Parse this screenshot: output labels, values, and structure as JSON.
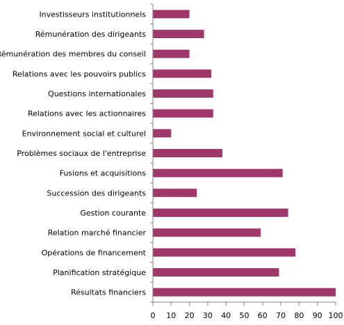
{
  "chart_data": {
    "type": "bar",
    "orientation": "horizontal",
    "categories": [
      "Investisseurs institutionnels",
      "Rémunération des dirigeants",
      "Rémunération des membres du conseil",
      "Relations avec les pouvoirs publics",
      "Questions internationales",
      "Relations avec les actionnaires",
      "Environnement social et culturel",
      "Problèmes sociaux de l'entreprise",
      "Fusions et acquisitions",
      "Succession des dirigeants",
      "Gestion courante",
      "Relation marché financier",
      "Opérations de financement",
      "Planification stratégique",
      "Résultats financiers"
    ],
    "values": [
      20,
      28,
      20,
      32,
      33,
      33,
      10,
      38,
      71,
      24,
      74,
      59,
      78,
      69,
      100
    ],
    "xlim": [
      0,
      100
    ],
    "xticks": [
      0,
      10,
      20,
      30,
      40,
      50,
      60,
      70,
      80,
      90,
      100
    ],
    "title": "",
    "xlabel": "",
    "ylabel": "",
    "bar_color": "#a0386b",
    "grid": false,
    "legend": "none"
  }
}
